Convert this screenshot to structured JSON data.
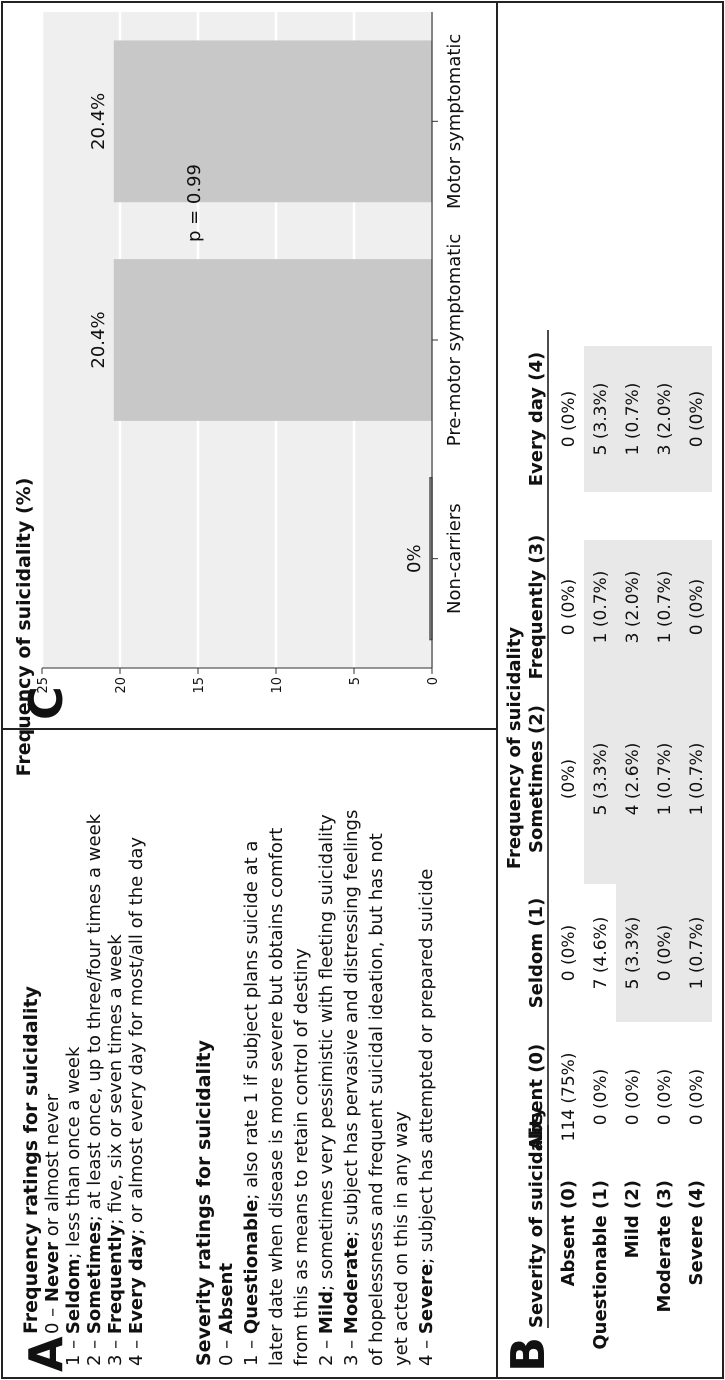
{
  "panel_a": {
    "letter": "A",
    "freq_title": "Frequency ratings for suicidality",
    "freq_items": [
      {
        "num": "0 – ",
        "term": "Never",
        "rest": " or almost never"
      },
      {
        "num": "1 – ",
        "term": "Seldom",
        "rest": "; less than once a week"
      },
      {
        "num": "2 – ",
        "term": "Sometimes",
        "rest": "; at least once, up to three/four times a week"
      },
      {
        "num": "3 – ",
        "term": "Frequently",
        "rest": "; five, six or seven times a week"
      },
      {
        "num": "4 – ",
        "term": "Every day",
        "rest": "; or almost every day for most/all of the day"
      }
    ],
    "sev_title": "Severity ratings for suicidality",
    "sev_lines": [
      [
        {
          "t": "0 – ",
          "b": false
        },
        {
          "t": "Absent",
          "b": true
        }
      ],
      [
        {
          "t": "1 – ",
          "b": false
        },
        {
          "t": "Questionable",
          "b": true
        },
        {
          "t": "; also rate 1 if subject plans suicide at a",
          "b": false
        }
      ],
      [
        {
          "t": "later date when disease is more severe but obtains comfort",
          "b": false
        }
      ],
      [
        {
          "t": "from this as means to retain control of destiny",
          "b": false
        }
      ],
      [
        {
          "t": "2 – ",
          "b": false
        },
        {
          "t": "Mild",
          "b": true
        },
        {
          "t": "; sometimes very pessimistic with fleeting suicidality",
          "b": false
        }
      ],
      [
        {
          "t": "3 – ",
          "b": false
        },
        {
          "t": "Moderate",
          "b": true
        },
        {
          "t": "; subject has pervasive and distressing feelings",
          "b": false
        }
      ],
      [
        {
          "t": "of hopelessness and frequent suicidal ideation, but has not",
          "b": false
        }
      ],
      [
        {
          "t": "yet acted on this in any way",
          "b": false
        }
      ],
      [
        {
          "t": "4 – ",
          "b": false
        },
        {
          "t": "Severe",
          "b": true
        },
        {
          "t": "; subject has attempted or prepared suicide",
          "b": false
        }
      ]
    ]
  },
  "panel_b": {
    "letter": "B",
    "title": "Frequency of suicidality",
    "row_header": "Severity of suicidality",
    "columns": [
      "Absent (0)",
      "Seldom (1)",
      "Sometimes (2)",
      "Frequently (3)",
      "Every day (4)"
    ],
    "rows": [
      {
        "label": "Absent (0)",
        "cells": [
          "114 (75%)",
          "0 (0%)",
          "(0%)",
          "0 (0%)",
          "0 (0%)"
        ],
        "shade": [
          false,
          false,
          false,
          false,
          false
        ]
      },
      {
        "label": "Questionable (1)",
        "cells": [
          "0 (0%)",
          "7 (4.6%)",
          "5 (3.3%)",
          "1 (0.7%)",
          "5 (3.3%)"
        ],
        "shade": [
          false,
          false,
          true,
          true,
          true
        ]
      },
      {
        "label": "Mild (2)",
        "cells": [
          "0 (0%)",
          "5 (3.3%)",
          "4 (2.6%)",
          "3 (2.0%)",
          "1 (0.7%)"
        ],
        "shade": [
          false,
          true,
          true,
          true,
          true
        ]
      },
      {
        "label": "Moderate (3)",
        "cells": [
          "0 (0%)",
          "0 (0%)",
          "1 (0.7%)",
          "1 (0.7%)",
          "3 (2.0%)"
        ],
        "shade": [
          false,
          true,
          true,
          true,
          true
        ]
      },
      {
        "label": "Severe (4)",
        "cells": [
          "0 (0%)",
          "1 (0.7%)",
          "1 (0.7%)",
          "0 (0%)",
          "0 (0%)"
        ],
        "shade": [
          false,
          true,
          true,
          true,
          true
        ]
      }
    ],
    "shade_color": "#e8e8e8"
  },
  "panel_c": {
    "letter": "C",
    "ylabel": "Frequency of suicidality (%)",
    "annotation": "p = 0.99",
    "bar_color": "#c8c8c8",
    "bg_color": "#efefef"
  },
  "chart_data": {
    "type": "bar",
    "categories": [
      "Non-carriers",
      "Pre-motor symptomatic",
      "Motor symptomatic"
    ],
    "values": [
      0,
      20.4,
      20.4
    ],
    "value_labels": [
      "0%",
      "20.4%",
      "20.4%"
    ],
    "title": "",
    "xlabel": "",
    "ylabel": "Frequency of suicidality (%)",
    "ylim": [
      0,
      25
    ],
    "yticks": [
      0,
      5,
      10,
      15,
      20,
      25
    ],
    "grid": true,
    "annotations": [
      "p = 0.99"
    ]
  }
}
